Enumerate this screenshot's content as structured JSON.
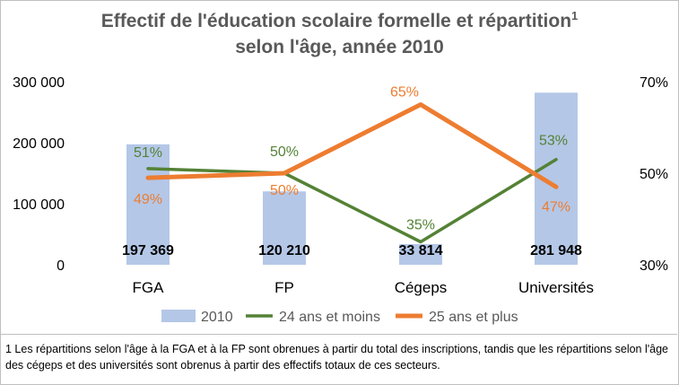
{
  "chart_data": {
    "type": "bar",
    "title_line1": "Effectif de l'éducation scolaire formelle et répartition",
    "title_sup": "1",
    "title_line2": "selon l'âge, année 2010",
    "categories": [
      "FGA",
      "FP",
      "Cégeps",
      "Universités"
    ],
    "bar_series": {
      "name": "2010",
      "values": [
        197369,
        120210,
        33814,
        281948
      ],
      "value_labels": [
        "197 369",
        "120 210",
        "33 814",
        "281 948"
      ],
      "color": "#b4c7e7"
    },
    "line_series": [
      {
        "name": "24 ans et moins",
        "values": [
          51,
          50,
          35,
          53
        ],
        "value_labels": [
          "51%",
          "50%",
          "35%",
          "53%"
        ],
        "color": "#548235"
      },
      {
        "name": "25 ans et plus",
        "values": [
          49,
          50,
          65,
          47
        ],
        "value_labels": [
          "49%",
          "50%",
          "65%",
          "47%"
        ],
        "color": "#ed7d31"
      }
    ],
    "y_left": {
      "min": 0,
      "max": 300000,
      "ticks": [
        0,
        100000,
        200000,
        300000
      ],
      "tick_labels": [
        "0",
        "100 000",
        "200 000",
        "300 000"
      ]
    },
    "y_right": {
      "min": 30,
      "max": 70,
      "ticks": [
        30,
        50,
        70
      ],
      "tick_labels": [
        "30%",
        "50%",
        "70%"
      ]
    },
    "grid": false,
    "legend_position": "bottom"
  },
  "footnote": "1 Les répartitions selon l'âge à la FGA et à la FP sont obrenues à partir du total des inscriptions, tandis que les répartitions selon l'âge des cégeps et des universités sont obrenus à partir des effectifs totaux de ces secteurs."
}
